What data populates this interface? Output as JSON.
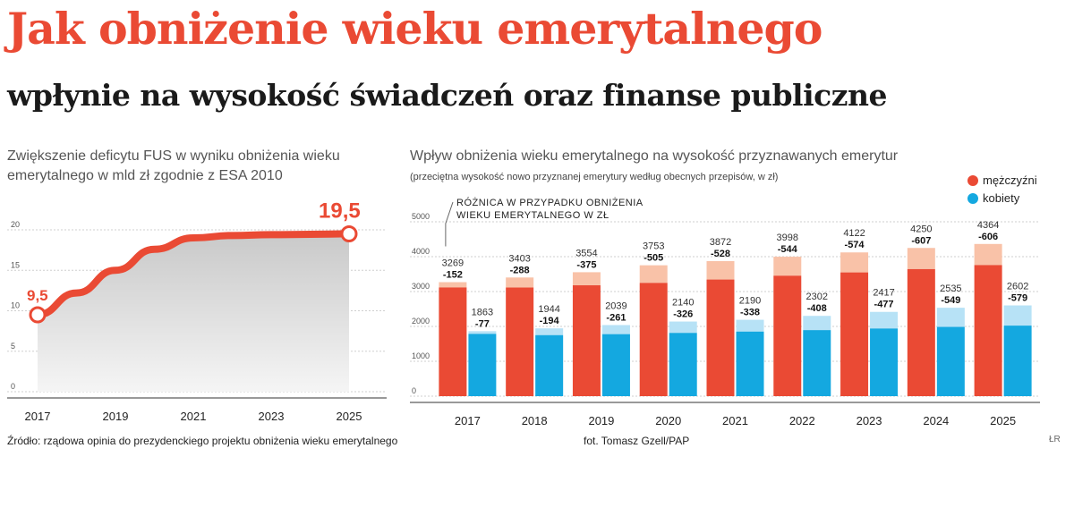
{
  "title": "Jak obniżenie wieku emerytalnego",
  "subtitle": "wpłynie na wysokość świadczeń oraz finanse publiczne",
  "left_panel": {
    "title_line1": "Zwiększenie deficytu FUS w wyniku obniżenia wieku",
    "title_line2": "emerytalnego w mld zł zgodnie z ESA 2010",
    "start_label": "9,5",
    "end_label": "19,5"
  },
  "right_panel": {
    "title": "Wpływ obniżenia wieku emerytalnego na wysokość przyznawanych emerytur",
    "note": "(przeciętna wysokość nowo przyznanej emerytury według obecnych przepisów, w zł)",
    "annotation_line1": "RÓŻNICA W PRZYPADKU OBNIŻENIA",
    "annotation_line2": "WIEKU EMERYTALNEGO W ZŁ",
    "legend_men": "mężczyźni",
    "legend_women": "kobiety"
  },
  "footer": {
    "source": "Źródło: rządowa opinia do prezydenckiego projektu obniżenia wieku emerytalnego",
    "photo": "fot. Tomasz Gzell/PAP",
    "author": "ŁR"
  },
  "colors": {
    "accent": "#ea4a34",
    "men_dark": "#ea4a34",
    "men_light": "#f9c2a8",
    "women_dark": "#14a8e0",
    "women_light": "#b7e2f6"
  },
  "chart_data": [
    {
      "type": "area",
      "x": [
        2017,
        2018,
        2019,
        2020,
        2021,
        2022,
        2023,
        2024,
        2025
      ],
      "values": [
        9.5,
        12.2,
        15.0,
        17.6,
        19.0,
        19.3,
        19.4,
        19.45,
        19.5
      ],
      "xticks": [
        "2017",
        "2019",
        "2021",
        "2023",
        "2025"
      ],
      "ylim": [
        0,
        20
      ],
      "yticks": [
        0,
        5,
        10,
        15,
        20
      ],
      "grid": true
    },
    {
      "type": "bar",
      "categories": [
        "2017",
        "2018",
        "2019",
        "2020",
        "2021",
        "2022",
        "2023",
        "2024",
        "2025"
      ],
      "series": [
        {
          "name": "mężczyźni",
          "values": [
            3269,
            3403,
            3554,
            3753,
            3872,
            3998,
            4122,
            4250,
            4364
          ],
          "diff": [
            -152,
            -288,
            -375,
            -505,
            -528,
            -544,
            -574,
            -607,
            -606
          ]
        },
        {
          "name": "kobiety",
          "values": [
            1863,
            1944,
            2039,
            2140,
            2190,
            2302,
            2417,
            2535,
            2602
          ],
          "diff": [
            -77,
            -194,
            -261,
            -326,
            -338,
            -408,
            -477,
            -549,
            -579
          ]
        }
      ],
      "ylim": [
        0,
        5000
      ],
      "yticks": [
        0,
        1000,
        2000,
        3000,
        4000,
        5000
      ],
      "legend": "top-right"
    }
  ]
}
